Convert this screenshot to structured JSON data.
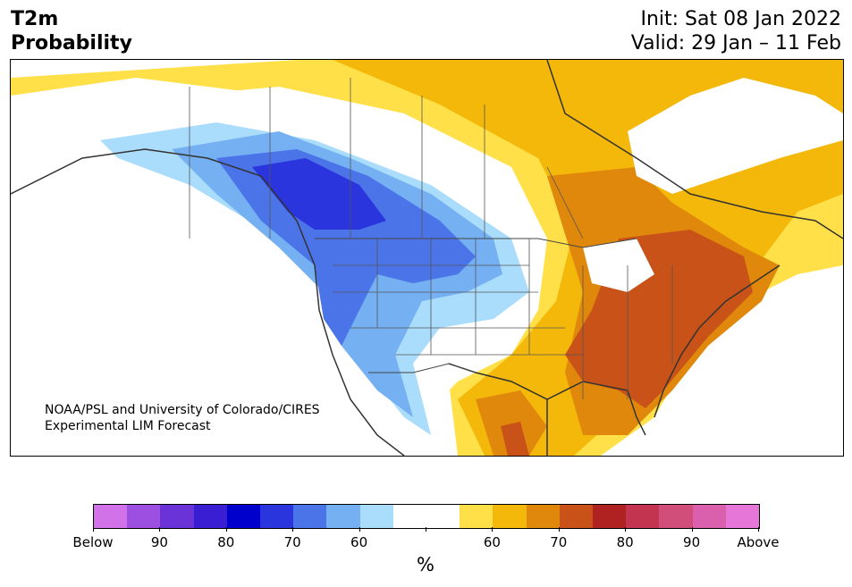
{
  "header": {
    "title_line1": "T2m",
    "title_line2": "Probability",
    "init": "Init: Sat 08 Jan 2022",
    "valid": "Valid: 29 Jan – 11 Feb"
  },
  "credit": {
    "line1": "NOAA/PSL and University of Colorado/CIRES",
    "line2": "Experimental LIM Forecast"
  },
  "colorbar": {
    "colors": [
      "#d272e8",
      "#9c4fe0",
      "#6a33d8",
      "#3a1ed4",
      "#0000cc",
      "#2a35dd",
      "#4b74e8",
      "#74b0f2",
      "#aadcfc",
      "#ffffff",
      "#ffffff",
      "#ffe048",
      "#f3b80a",
      "#e0880c",
      "#c85218",
      "#b02222",
      "#c23450",
      "#d24e7a",
      "#da60ae",
      "#e676d8"
    ],
    "tick_labels": [
      "Below",
      "90",
      "80",
      "70",
      "60",
      "",
      "60",
      "70",
      "80",
      "90",
      "Above"
    ],
    "unit": "%"
  },
  "map": {
    "region": "North America",
    "below_normal_color": "#2a35dd",
    "above_normal_color": "#c85218"
  }
}
